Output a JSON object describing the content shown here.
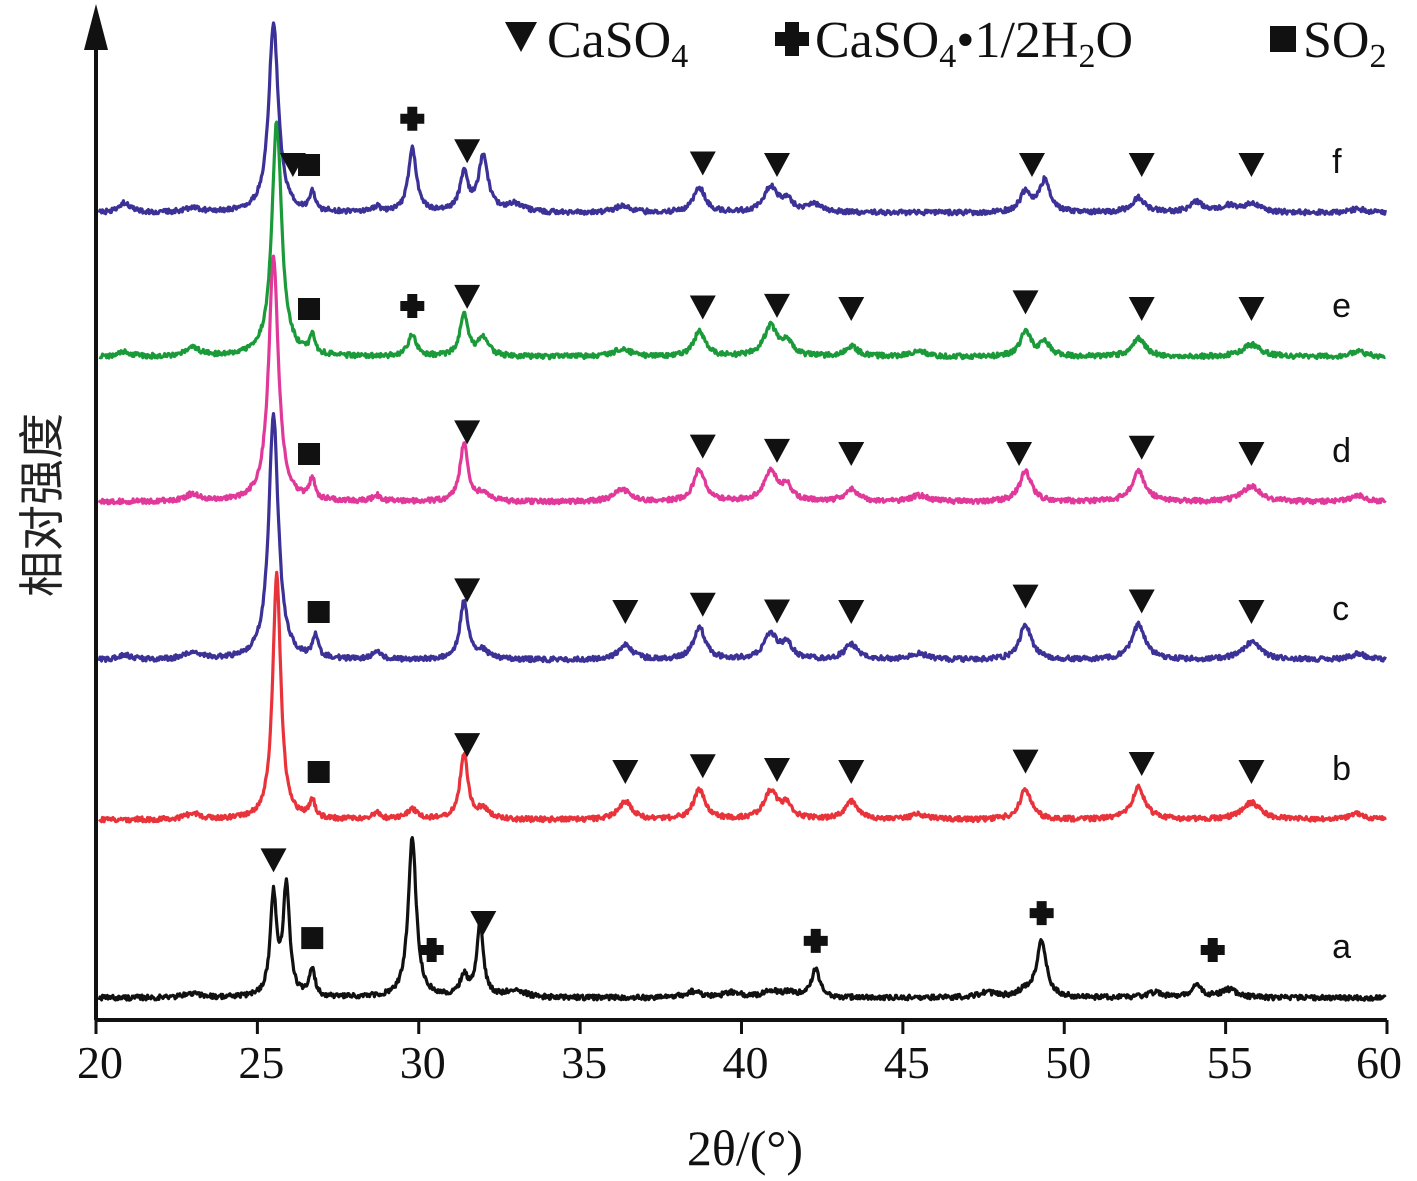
{
  "chart_data": {
    "type": "line",
    "title": "",
    "xlabel": "2θ/(°)",
    "ylabel": "相对强度",
    "xlim": [
      20,
      60
    ],
    "xticks": [
      20,
      25,
      30,
      35,
      40,
      45,
      50,
      55,
      60
    ],
    "grid": false,
    "legend_position": "top-right",
    "legend": [
      {
        "symbol": "triangle",
        "label_parts": [
          "CaSO",
          "4"
        ]
      },
      {
        "symbol": "cross",
        "label_parts": [
          "CaSO",
          "4",
          "•1/2H",
          "2",
          "O"
        ]
      },
      {
        "symbol": "square",
        "label_parts": [
          "SO",
          "2"
        ]
      }
    ],
    "series": [
      {
        "label": "a",
        "color": "#111111",
        "baseline": 998,
        "peaks": [
          [
            23.0,
            4,
            0.35
          ],
          [
            25.5,
            100,
            0.12
          ],
          [
            25.9,
            110,
            0.12
          ],
          [
            26.7,
            28,
            0.1
          ],
          [
            29.8,
            160,
            0.15
          ],
          [
            31.4,
            20,
            0.15
          ],
          [
            31.9,
            75,
            0.12
          ],
          [
            33.0,
            8,
            0.3
          ],
          [
            38.5,
            6,
            0.3
          ],
          [
            39.7,
            5,
            0.3
          ],
          [
            40.9,
            6,
            0.3
          ],
          [
            41.5,
            5,
            0.3
          ],
          [
            42.3,
            28,
            0.15
          ],
          [
            47.6,
            5,
            0.3
          ],
          [
            48.8,
            6,
            0.3
          ],
          [
            49.3,
            55,
            0.18
          ],
          [
            52.8,
            5,
            0.3
          ],
          [
            54.1,
            12,
            0.2
          ],
          [
            55.1,
            8,
            0.3
          ]
        ],
        "markers": [
          [
            "triangle",
            25.5
          ],
          [
            "square",
            26.7
          ],
          [
            "cross",
            30.4
          ],
          [
            "triangle",
            32.0
          ],
          [
            "cross",
            42.3
          ],
          [
            "cross",
            49.3
          ],
          [
            "cross",
            54.6
          ]
        ]
      },
      {
        "label": "b",
        "color": "#e8333a",
        "baseline": 820,
        "peaks": [
          [
            23.0,
            6,
            0.3
          ],
          [
            25.6,
            245,
            0.15
          ],
          [
            26.7,
            18,
            0.1
          ],
          [
            28.7,
            6,
            0.15
          ],
          [
            29.8,
            10,
            0.2
          ],
          [
            31.4,
            65,
            0.15
          ],
          [
            32.0,
            10,
            0.2
          ],
          [
            36.4,
            18,
            0.25
          ],
          [
            38.7,
            30,
            0.22
          ],
          [
            40.9,
            28,
            0.25
          ],
          [
            41.4,
            14,
            0.2
          ],
          [
            43.4,
            18,
            0.25
          ],
          [
            45.5,
            5,
            0.3
          ],
          [
            48.8,
            30,
            0.22
          ],
          [
            52.3,
            32,
            0.25
          ],
          [
            55.8,
            17,
            0.35
          ],
          [
            59.1,
            6,
            0.3
          ]
        ],
        "markers": [
          [
            "square",
            26.9
          ],
          [
            "triangle",
            31.5
          ],
          [
            "triangle",
            36.4
          ],
          [
            "triangle",
            38.8
          ],
          [
            "triangle",
            41.1
          ],
          [
            "triangle",
            43.4
          ],
          [
            "triangle",
            48.8
          ],
          [
            "triangle",
            52.4
          ],
          [
            "triangle",
            55.8
          ]
        ]
      },
      {
        "label": "c",
        "color": "#3b3196",
        "baseline": 660,
        "peaks": [
          [
            20.9,
            5,
            0.2
          ],
          [
            23.0,
            7,
            0.3
          ],
          [
            25.5,
            245,
            0.18
          ],
          [
            26.8,
            22,
            0.1
          ],
          [
            28.7,
            8,
            0.15
          ],
          [
            31.4,
            58,
            0.15
          ],
          [
            32.0,
            8,
            0.2
          ],
          [
            36.4,
            15,
            0.25
          ],
          [
            38.7,
            32,
            0.22
          ],
          [
            40.9,
            25,
            0.25
          ],
          [
            41.4,
            15,
            0.2
          ],
          [
            43.4,
            15,
            0.25
          ],
          [
            45.5,
            6,
            0.3
          ],
          [
            48.8,
            35,
            0.22
          ],
          [
            52.3,
            35,
            0.25
          ],
          [
            55.8,
            17,
            0.35
          ],
          [
            59.1,
            6,
            0.3
          ]
        ],
        "markers": [
          [
            "square",
            26.9
          ],
          [
            "triangle",
            31.5
          ],
          [
            "triangle",
            36.4
          ],
          [
            "triangle",
            38.8
          ],
          [
            "triangle",
            41.1
          ],
          [
            "triangle",
            43.4
          ],
          [
            "triangle",
            48.8
          ],
          [
            "triangle",
            52.4
          ],
          [
            "triangle",
            55.8
          ]
        ]
      },
      {
        "label": "d",
        "color": "#e0399a",
        "baseline": 502,
        "peaks": [
          [
            23.0,
            7,
            0.3
          ],
          [
            25.5,
            245,
            0.18
          ],
          [
            26.7,
            20,
            0.1
          ],
          [
            28.7,
            6,
            0.15
          ],
          [
            31.4,
            58,
            0.15
          ],
          [
            32.0,
            8,
            0.2
          ],
          [
            36.3,
            12,
            0.3
          ],
          [
            38.7,
            32,
            0.22
          ],
          [
            40.9,
            30,
            0.25
          ],
          [
            41.4,
            14,
            0.2
          ],
          [
            43.4,
            12,
            0.25
          ],
          [
            45.5,
            6,
            0.3
          ],
          [
            48.8,
            30,
            0.22
          ],
          [
            52.3,
            30,
            0.25
          ],
          [
            55.8,
            15,
            0.35
          ],
          [
            59.1,
            6,
            0.3
          ]
        ],
        "markers": [
          [
            "square",
            26.6
          ],
          [
            "triangle",
            31.5
          ],
          [
            "triangle",
            38.8
          ],
          [
            "triangle",
            41.1
          ],
          [
            "triangle",
            43.4
          ],
          [
            "triangle",
            48.6
          ],
          [
            "triangle",
            52.4
          ],
          [
            "triangle",
            55.8
          ]
        ]
      },
      {
        "label": "e",
        "color": "#1a9a38",
        "baseline": 357,
        "peaks": [
          [
            20.9,
            5,
            0.2
          ],
          [
            23.0,
            8,
            0.3
          ],
          [
            25.6,
            235,
            0.18
          ],
          [
            26.7,
            18,
            0.1
          ],
          [
            29.8,
            22,
            0.15
          ],
          [
            31.4,
            42,
            0.15
          ],
          [
            32.0,
            18,
            0.2
          ],
          [
            36.3,
            8,
            0.3
          ],
          [
            38.7,
            25,
            0.22
          ],
          [
            40.9,
            30,
            0.25
          ],
          [
            41.4,
            14,
            0.2
          ],
          [
            43.4,
            10,
            0.25
          ],
          [
            45.5,
            5,
            0.3
          ],
          [
            48.8,
            25,
            0.2
          ],
          [
            49.4,
            14,
            0.2
          ],
          [
            52.3,
            18,
            0.25
          ],
          [
            55.8,
            12,
            0.35
          ],
          [
            59.1,
            5,
            0.3
          ]
        ],
        "markers": [
          [
            "square",
            26.6
          ],
          [
            "cross",
            29.8
          ],
          [
            "triangle",
            31.5
          ],
          [
            "triangle",
            38.8
          ],
          [
            "triangle",
            41.1
          ],
          [
            "triangle",
            43.4
          ],
          [
            "triangle",
            48.8
          ],
          [
            "triangle",
            52.4
          ],
          [
            "triangle",
            55.8
          ]
        ]
      },
      {
        "label": "f",
        "color": "#3b3196",
        "baseline": 213,
        "peaks": [
          [
            20.9,
            10,
            0.2
          ],
          [
            23.0,
            5,
            0.3
          ],
          [
            25.5,
            190,
            0.18
          ],
          [
            26.7,
            18,
            0.1
          ],
          [
            28.7,
            5,
            0.15
          ],
          [
            29.8,
            65,
            0.15
          ],
          [
            31.4,
            38,
            0.15
          ],
          [
            32.0,
            55,
            0.18
          ],
          [
            33.0,
            8,
            0.3
          ],
          [
            36.3,
            6,
            0.3
          ],
          [
            38.7,
            25,
            0.22
          ],
          [
            40.9,
            25,
            0.25
          ],
          [
            41.4,
            12,
            0.2
          ],
          [
            42.3,
            8,
            0.3
          ],
          [
            48.8,
            20,
            0.2
          ],
          [
            49.4,
            32,
            0.2
          ],
          [
            52.3,
            15,
            0.25
          ],
          [
            54.1,
            10,
            0.25
          ],
          [
            55.1,
            6,
            0.3
          ],
          [
            55.8,
            8,
            0.35
          ],
          [
            59.1,
            4,
            0.3
          ]
        ],
        "markers": [
          [
            "triangle",
            26.1
          ],
          [
            "square",
            26.6
          ],
          [
            "cross",
            29.8
          ],
          [
            "triangle",
            31.5
          ],
          [
            "triangle",
            38.8
          ],
          [
            "triangle",
            41.1
          ],
          [
            "triangle",
            49.0
          ],
          [
            "triangle",
            52.4
          ],
          [
            "triangle",
            55.8
          ]
        ]
      }
    ]
  }
}
